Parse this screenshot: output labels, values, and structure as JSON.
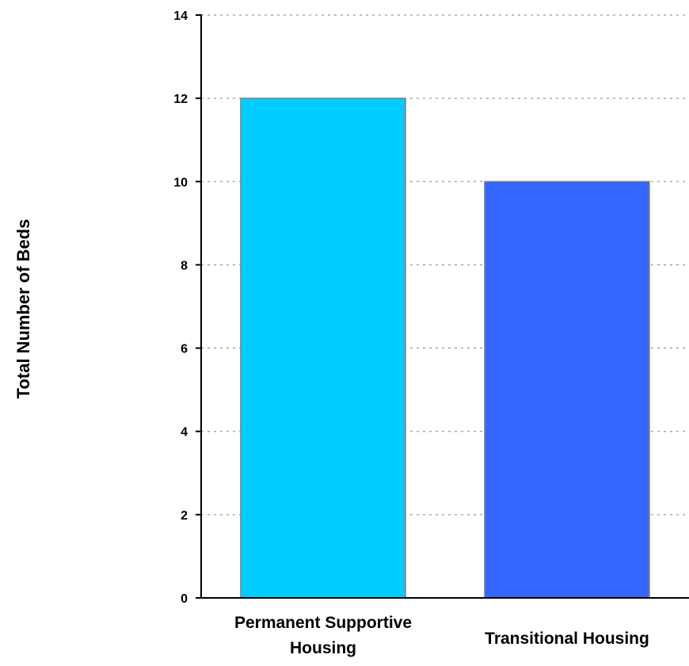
{
  "chart_data": {
    "type": "bar",
    "categories": [
      "Permanent Supportive Housing",
      "Transitional Housing"
    ],
    "category_label_lines": [
      [
        "Permanent Supportive",
        "Housing"
      ],
      [
        "Transitional Housing"
      ]
    ],
    "values": [
      12,
      10
    ],
    "colors": [
      "#00CCFF",
      "#3366FF"
    ],
    "bar_stroke": "#7F7F7F",
    "ylabel": "Total Number of Beds",
    "xlabel": "",
    "title": "",
    "ylim": [
      0,
      14
    ],
    "yticks": [
      0,
      2,
      4,
      6,
      8,
      10,
      12,
      14
    ],
    "grid": true,
    "grid_style": "dotted",
    "grid_color": "#999999",
    "legend": "none"
  }
}
